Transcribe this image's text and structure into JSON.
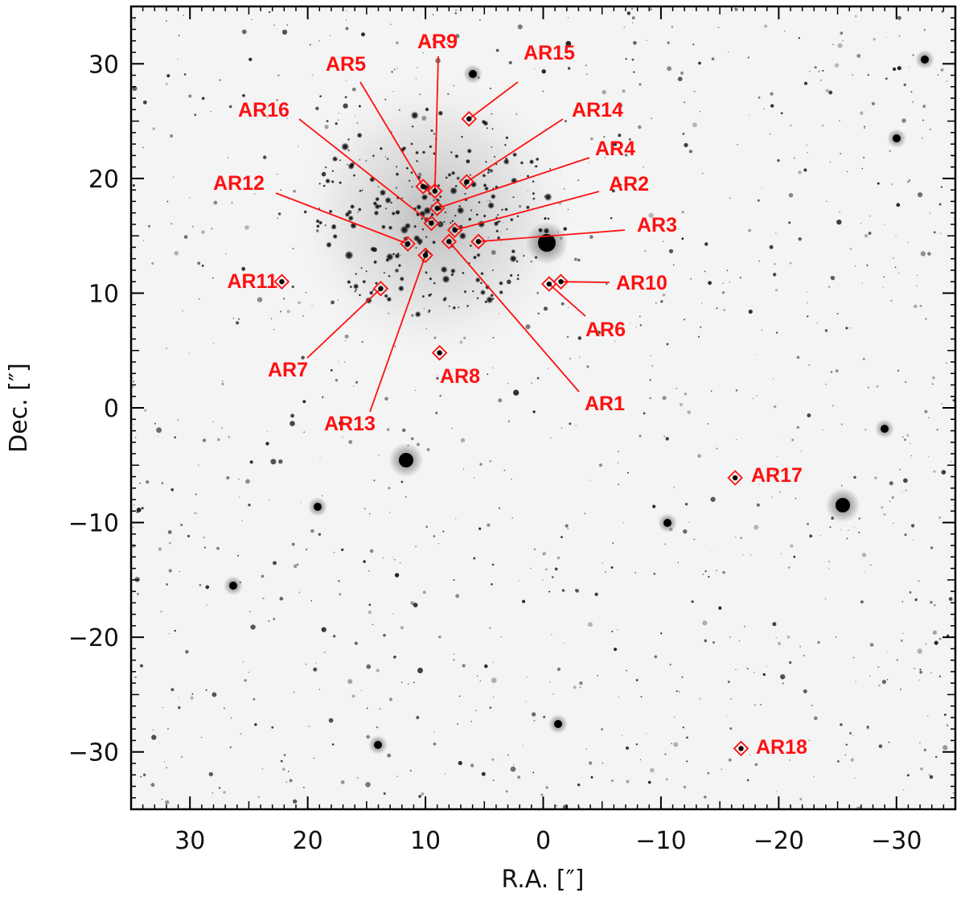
{
  "chart_data": {
    "type": "scatter",
    "title": "",
    "xlabel": "R.A. [″]",
    "ylabel": "Dec. [″]",
    "xlim": [
      35,
      -35
    ],
    "ylim": [
      -35,
      35
    ],
    "x_ticks": [
      "30",
      "20",
      "10",
      "0",
      "−10",
      "−20",
      "−30"
    ],
    "y_ticks": [
      "30",
      "20",
      "10",
      "0",
      "−10",
      "−20",
      "−30"
    ],
    "x_tick_values": [
      30,
      20,
      10,
      0,
      -10,
      -20,
      -30
    ],
    "y_tick_values": [
      30,
      20,
      10,
      0,
      -10,
      -20,
      -30
    ],
    "background": "greyscale sky image (inverted): dense star cluster centered near R.A. 9, Dec. 17; bright field stars near (0, 14.5), (11.5, -4.5), (-25, -8.5)",
    "marker_color": "#ff1010",
    "marker_shape": "diamond",
    "sources": [
      {
        "name": "AR1",
        "x": 8.0,
        "y": 14.5
      },
      {
        "name": "AR2",
        "x": 7.5,
        "y": 15.5
      },
      {
        "name": "AR3",
        "x": 5.5,
        "y": 14.5
      },
      {
        "name": "AR4",
        "x": 9.0,
        "y": 17.4
      },
      {
        "name": "AR5",
        "x": 10.2,
        "y": 19.3
      },
      {
        "name": "AR6",
        "x": -0.5,
        "y": 10.8
      },
      {
        "name": "AR7",
        "x": 13.8,
        "y": 10.4
      },
      {
        "name": "AR8",
        "x": 8.8,
        "y": 4.8
      },
      {
        "name": "AR9",
        "x": 9.2,
        "y": 18.9
      },
      {
        "name": "AR10",
        "x": -1.5,
        "y": 11.0
      },
      {
        "name": "AR11",
        "x": 22.2,
        "y": 11.0
      },
      {
        "name": "AR12",
        "x": 11.5,
        "y": 14.3
      },
      {
        "name": "AR13",
        "x": 10.0,
        "y": 13.3
      },
      {
        "name": "AR14",
        "x": 6.5,
        "y": 19.7
      },
      {
        "name": "AR15",
        "x": 6.3,
        "y": 25.2
      },
      {
        "name": "AR16",
        "x": 9.5,
        "y": 16.1
      },
      {
        "name": "AR17",
        "x": -16.3,
        "y": -6.1
      },
      {
        "name": "AR18",
        "x": -16.8,
        "y": -29.7
      }
    ]
  }
}
